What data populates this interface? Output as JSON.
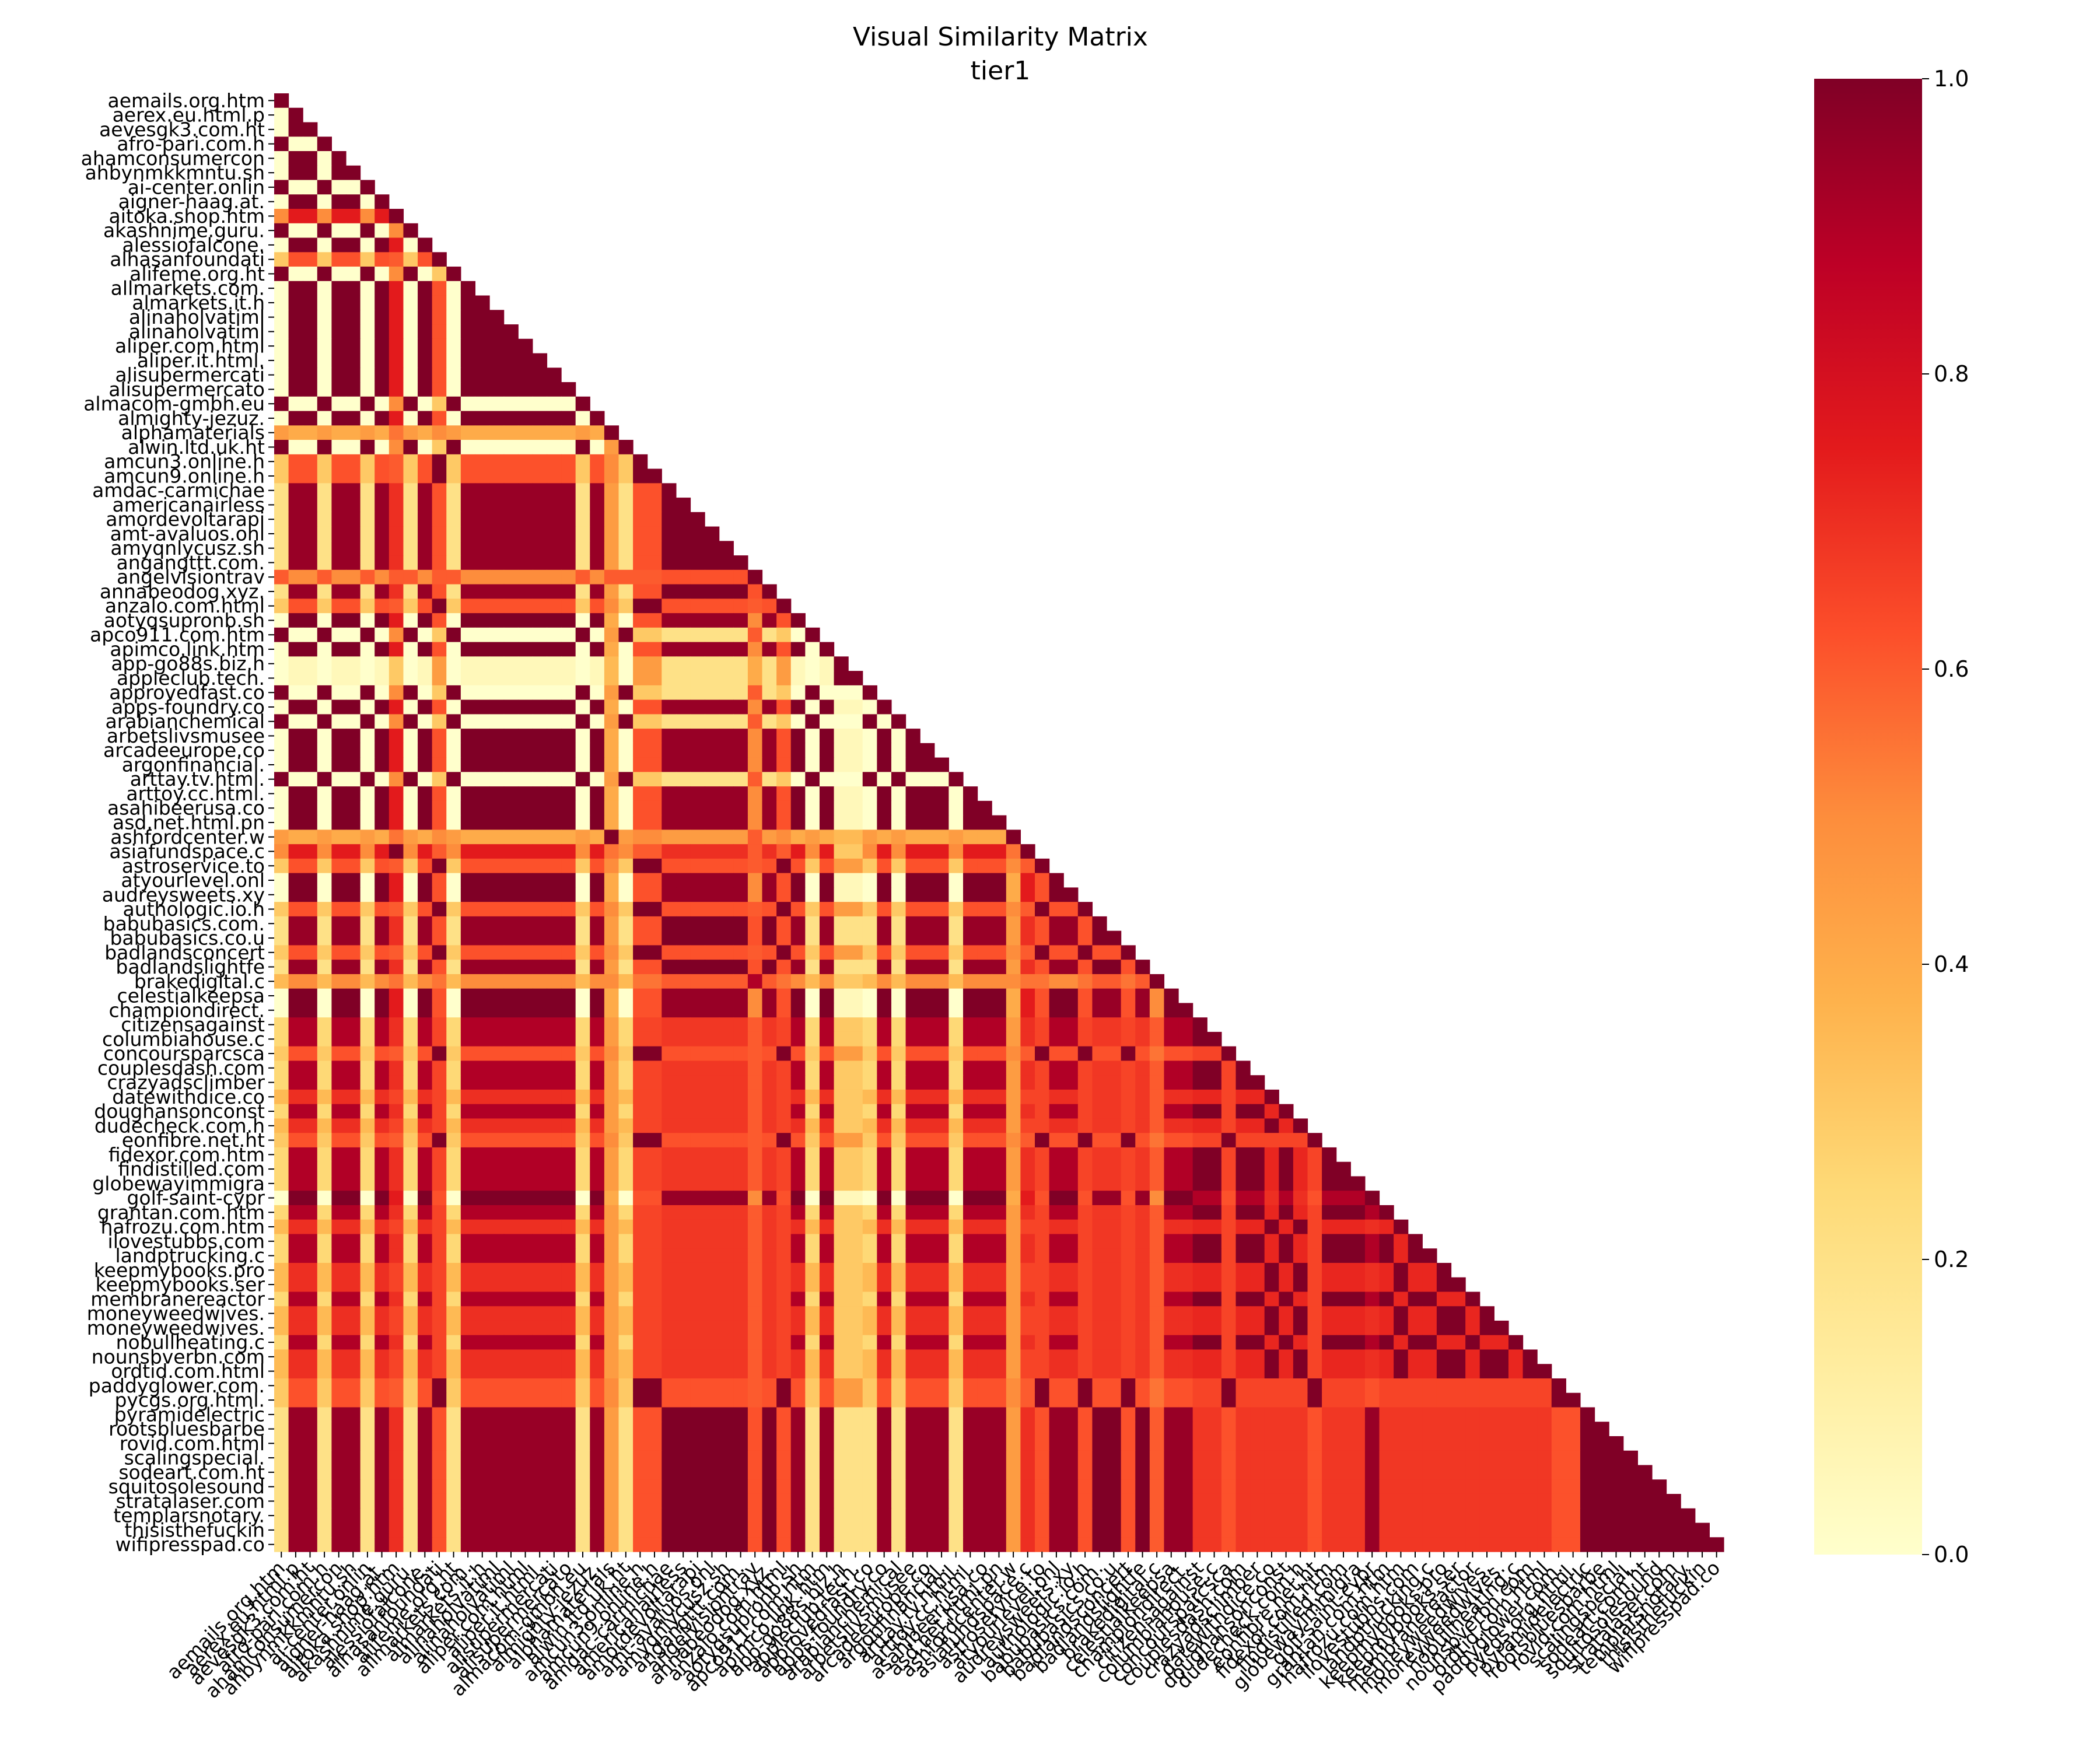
{
  "chart_data": {
    "type": "heatmap",
    "title": "Visual Similarity Matrix",
    "subtitle": "tier1",
    "mask": "upper-triangle",
    "colormap": "YlOrRd",
    "colormap_stops": [
      "#ffffcc",
      "#ffeda0",
      "#fed976",
      "#feb24c",
      "#fd8d3c",
      "#fc4e2a",
      "#e31a1c",
      "#bd0026",
      "#800026"
    ],
    "vmin": 0.0,
    "vmax": 1.0,
    "colorbar_ticks": [
      "0.0",
      "0.2",
      "0.4",
      "0.6",
      "0.8",
      "1.0"
    ],
    "labels": [
      "aemails.org.htm",
      "aerex.eu.html.p",
      "aevesgk3.com.ht",
      "afro-pari.com.h",
      "ahamconsumercon",
      "ahbynmkkmntu.sh",
      "ai-center.onlin",
      "aigner-haag.at.",
      "aitoka.shop.htm",
      "akashnime.guru.",
      "alessiofalcone.",
      "alhasanfoundati",
      "alifeme.org.ht",
      "allmarkets.com.",
      "almarkets.it.h",
      "alinaholvatiml",
      "alinaholvatiml",
      "aliper.com.html",
      "aliper.it.html.",
      "alisupermercati",
      "alisupermercato",
      "almacom-gmbh.eu",
      "almighty-jezuz.",
      "alphamaterials",
      "alwin.ltd.uk.ht",
      "amcun3.online.h",
      "amcun9.online.h",
      "amdac-carmichae",
      "americanairless",
      "amordevoltarapi",
      "amt-avaluos.onl",
      "amyqnlycusz.sh",
      "angangttt.com.",
      "angelvisiontrav",
      "annabeodog.xyz.",
      "anzalo.com.html",
      "aotyqsupronb.sh",
      "apco911.com.htm",
      "apimco.link.htm",
      "app-go88s.biz.h",
      "appleclub.tech.",
      "approvedfast.co",
      "apps-foundry.co",
      "arabianchemical",
      "arbetslivsmusee",
      "arcadeeurope.co",
      "argonfinancial.",
      "arttay.tv.html.",
      "arttoy.cc.html.",
      "asahibeerusa.co",
      "asd.net.html.pn",
      "ashfordcenter.w",
      "asiafundspace.c",
      "astroservice.to",
      "atyourlevel.onl",
      "audreysweets.xy",
      "authologic.io.h",
      "babubasics.com.",
      "babubasics.co.u",
      "badlandsconcert",
      "badlandslightfe",
      "brakedigital.c",
      "celestialkeepsa",
      "championdirect.",
      "citizensagainst",
      "columbiahouse.c",
      "concoursparcsca",
      "couplesdash.com",
      "crazyadsclimber",
      "datewithdice.co",
      "doughansonconst",
      "dudecheck.com.h",
      "eonfibre.net.ht",
      "fidexor.com.htm",
      "findistilled.com",
      "globewayimmigra",
      "golf-saint-cypr",
      "grantan.com.htm",
      "hafrozu.com.htm",
      "ilovestubbs.com",
      "landptrucking.c",
      "keepmybooks.pro",
      "keepmybooks.ser",
      "membranereactor",
      "moneyweedwives.",
      "moneyweedwives.",
      "nobullheating.c",
      "nounsbverbn.com",
      "ordtid.com.html",
      "paddyglower.com.",
      "pycgs.org.html.",
      "pyramidelectric",
      "rootsbluesbarbe",
      "rovid.com.html",
      "scalingspecial.",
      "sodeart.com.ht",
      "squitosolesound",
      "stratalaser.com",
      "templarsnotary.",
      "thisisthefuckin",
      "wifipresspad.co"
    ],
    "group_ids": [
      0,
      1,
      1,
      0,
      1,
      1,
      0,
      1,
      2,
      0,
      1,
      3,
      0,
      1,
      1,
      1,
      1,
      1,
      1,
      1,
      1,
      0,
      1,
      4,
      0,
      3,
      3,
      5,
      5,
      5,
      5,
      5,
      5,
      6,
      5,
      3,
      1,
      0,
      1,
      7,
      7,
      0,
      1,
      0,
      1,
      1,
      1,
      0,
      1,
      1,
      1,
      4,
      2,
      3,
      1,
      1,
      3,
      5,
      5,
      3,
      5,
      8,
      1,
      1,
      9,
      9,
      3,
      9,
      9,
      10,
      9,
      10,
      3,
      9,
      9,
      9,
      1,
      9,
      10,
      9,
      9,
      10,
      10,
      9,
      10,
      10,
      9,
      10,
      10,
      3,
      3,
      5,
      5,
      5,
      5,
      5,
      5,
      5,
      5,
      5,
      5
    ],
    "group_similarity": [
      [
        1.0,
        0.0,
        0.5,
        0.3,
        0.45,
        0.2,
        0.6,
        0.0,
        0.35,
        0.25,
        0.35
      ],
      [
        0.0,
        1.0,
        0.75,
        0.62,
        0.4,
        0.95,
        0.5,
        0.05,
        0.5,
        0.9,
        0.7
      ],
      [
        0.5,
        0.75,
        1.0,
        0.6,
        0.55,
        0.7,
        0.6,
        0.3,
        0.55,
        0.7,
        0.65
      ],
      [
        0.3,
        0.62,
        0.6,
        1.0,
        0.5,
        0.62,
        0.6,
        0.45,
        0.55,
        0.65,
        0.65
      ],
      [
        0.45,
        0.4,
        0.55,
        0.5,
        1.0,
        0.45,
        0.6,
        0.35,
        0.5,
        0.45,
        0.45
      ],
      [
        0.2,
        0.95,
        0.7,
        0.62,
        0.45,
        1.0,
        0.62,
        0.2,
        0.6,
        0.68,
        0.68
      ],
      [
        0.6,
        0.5,
        0.6,
        0.6,
        0.6,
        0.62,
        1.0,
        0.4,
        0.9,
        0.6,
        0.6
      ],
      [
        0.0,
        0.05,
        0.3,
        0.45,
        0.35,
        0.2,
        0.4,
        1.0,
        0.3,
        0.3,
        0.3
      ],
      [
        0.35,
        0.5,
        0.55,
        0.55,
        0.5,
        0.6,
        0.9,
        0.3,
        1.0,
        0.6,
        0.6
      ],
      [
        0.25,
        0.9,
        0.7,
        0.65,
        0.45,
        0.68,
        0.6,
        0.3,
        0.6,
        1.0,
        0.72
      ],
      [
        0.35,
        0.7,
        0.65,
        0.65,
        0.45,
        0.68,
        0.6,
        0.3,
        0.6,
        0.72,
        1.0
      ]
    ]
  }
}
